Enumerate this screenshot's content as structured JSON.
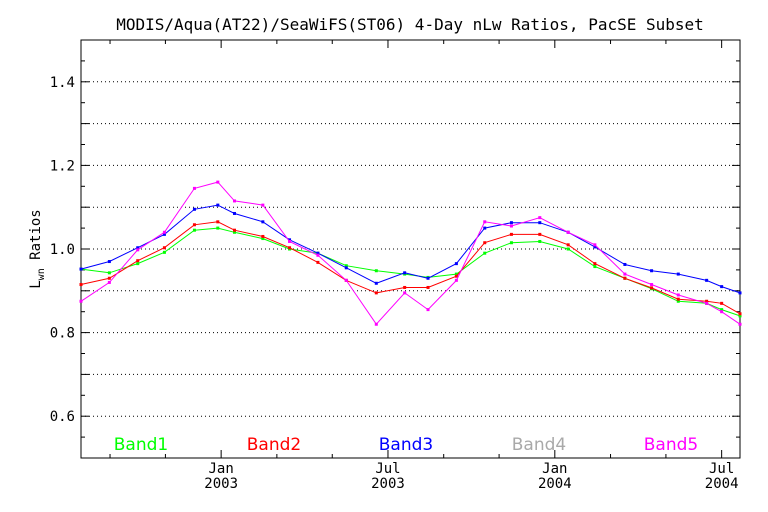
{
  "chart_data": {
    "type": "line",
    "title": "MODIS/Aqua(AT22)/SeaWiFS(ST06) 4-Day nLw Ratios, PacSE Subset",
    "ylabel_main": "L",
    "ylabel_sub": "wn",
    "ylabel_rest": " Ratios",
    "ylim": [
      0.5,
      1.5
    ],
    "yticks": [
      0.6,
      0.8,
      1.0,
      1.2,
      1.4
    ],
    "ytick_labels": [
      "0.6",
      "0.8",
      "1.0",
      "1.2",
      "1.4"
    ],
    "xlim": [
      2002.58,
      2004.555
    ],
    "xticks": [
      {
        "value": 2003.0,
        "line1": "Jan",
        "line2": "2003"
      },
      {
        "value": 2003.5,
        "line1": "Jul",
        "line2": "2003"
      },
      {
        "value": 2004.0,
        "line1": "Jan",
        "line2": "2004"
      },
      {
        "value": 2004.5,
        "line1": "Jul",
        "line2": "2004"
      }
    ],
    "minor_xticks": [
      2002.667,
      2002.833,
      2003.167,
      2003.333,
      2003.667,
      2003.833,
      2004.167,
      2004.333
    ],
    "grid": true,
    "legend_position": "bottom",
    "series": [
      {
        "name": "Band1",
        "color": "#00ff00",
        "x": [
          2002.58,
          2002.665,
          2002.75,
          2002.83,
          2002.92,
          2002.99,
          2003.04,
          2003.125,
          2003.205,
          2003.29,
          2003.375,
          2003.465,
          2003.55,
          2003.62,
          2003.705,
          2003.79,
          2003.87,
          2003.955,
          2004.04,
          2004.12,
          2004.21,
          2004.29,
          2004.37,
          2004.455,
          2004.5,
          2004.555
        ],
        "y": [
          0.952,
          0.943,
          0.965,
          0.992,
          1.045,
          1.05,
          1.04,
          1.025,
          1.0,
          0.99,
          0.96,
          0.948,
          0.94,
          0.932,
          0.94,
          0.99,
          1.015,
          1.018,
          1.0,
          0.958,
          0.93,
          0.905,
          0.875,
          0.87,
          0.855,
          0.84
        ]
      },
      {
        "name": "Band2",
        "color": "#ff0000",
        "x": [
          2002.58,
          2002.665,
          2002.75,
          2002.83,
          2002.92,
          2002.99,
          2003.04,
          2003.125,
          2003.205,
          2003.29,
          2003.375,
          2003.465,
          2003.55,
          2003.62,
          2003.705,
          2003.79,
          2003.87,
          2003.955,
          2004.04,
          2004.12,
          2004.21,
          2004.29,
          2004.37,
          2004.455,
          2004.5,
          2004.555
        ],
        "y": [
          0.915,
          0.93,
          0.972,
          1.003,
          1.058,
          1.065,
          1.045,
          1.03,
          1.003,
          0.968,
          0.925,
          0.895,
          0.908,
          0.908,
          0.935,
          1.015,
          1.035,
          1.035,
          1.01,
          0.965,
          0.93,
          0.907,
          0.88,
          0.875,
          0.87,
          0.845
        ]
      },
      {
        "name": "Band3",
        "color": "#0000ff",
        "x": [
          2002.58,
          2002.665,
          2002.75,
          2002.83,
          2002.92,
          2002.99,
          2003.04,
          2003.125,
          2003.205,
          2003.29,
          2003.375,
          2003.465,
          2003.55,
          2003.62,
          2003.705,
          2003.79,
          2003.87,
          2003.955,
          2004.04,
          2004.12,
          2004.21,
          2004.29,
          2004.37,
          2004.455,
          2004.5,
          2004.555
        ],
        "y": [
          0.952,
          0.97,
          1.003,
          1.035,
          1.095,
          1.105,
          1.085,
          1.065,
          1.022,
          0.99,
          0.955,
          0.918,
          0.943,
          0.93,
          0.965,
          1.05,
          1.063,
          1.063,
          1.04,
          1.005,
          0.963,
          0.948,
          0.94,
          0.925,
          0.91,
          0.895
        ]
      },
      {
        "name": "Band4",
        "color": "#a9a9a9",
        "x": [],
        "y": []
      },
      {
        "name": "Band5",
        "color": "#ff00ff",
        "x": [
          2002.58,
          2002.665,
          2002.75,
          2002.83,
          2002.92,
          2002.99,
          2003.04,
          2003.125,
          2003.205,
          2003.29,
          2003.375,
          2003.465,
          2003.55,
          2003.62,
          2003.705,
          2003.79,
          2003.87,
          2003.955,
          2004.04,
          2004.12,
          2004.21,
          2004.29,
          2004.37,
          2004.455,
          2004.5,
          2004.555
        ],
        "y": [
          0.875,
          0.92,
          0.998,
          1.04,
          1.145,
          1.16,
          1.115,
          1.105,
          1.018,
          0.985,
          0.925,
          0.82,
          0.895,
          0.855,
          0.925,
          1.065,
          1.055,
          1.075,
          1.04,
          1.01,
          0.94,
          0.915,
          0.89,
          0.87,
          0.85,
          0.82
        ]
      }
    ]
  }
}
